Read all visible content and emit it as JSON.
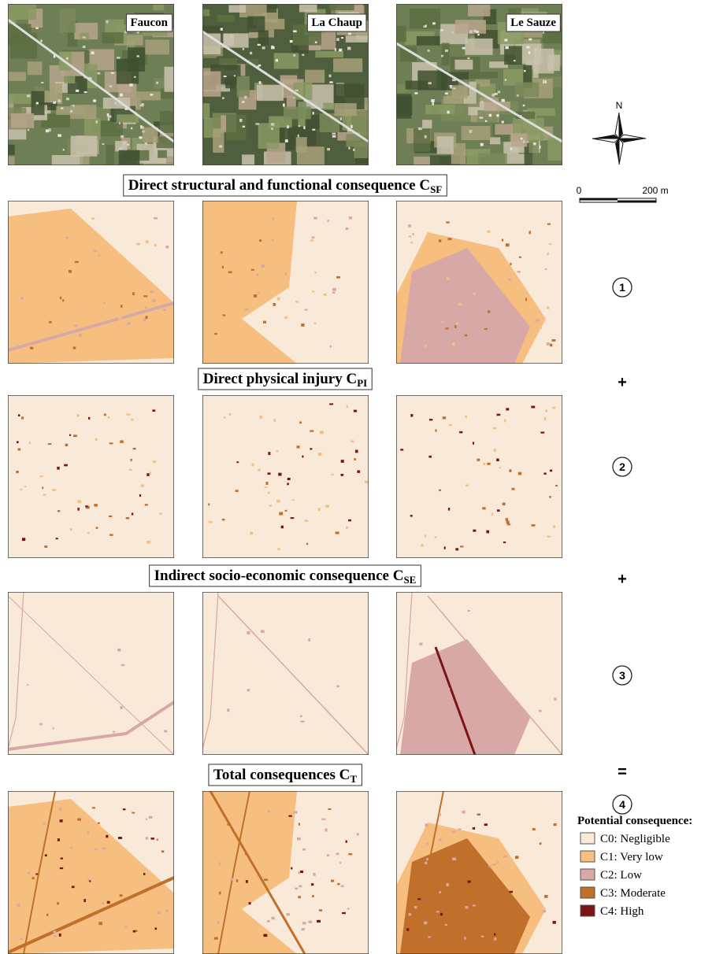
{
  "aerial_labels": [
    "Faucon",
    "La Chaup",
    "Le Sauze"
  ],
  "north_label": "N",
  "scale_bar": {
    "start": "0",
    "end": "200 m"
  },
  "sections": [
    {
      "title": "Direct structural and functional consequence C",
      "subscript": "SF"
    },
    {
      "title": "Direct physical injury C",
      "subscript": "PI"
    },
    {
      "title": "Indirect socio-economic consequence C",
      "subscript": "SE"
    },
    {
      "title": "Total consequences C",
      "subscript": "T"
    }
  ],
  "markers": [
    "1",
    "2",
    "3",
    "4"
  ],
  "operators": [
    "+",
    "+",
    "="
  ],
  "legend": {
    "title": "Potential consequence:",
    "items": [
      {
        "label": "C0: Negligible",
        "color": "#f8e9d8"
      },
      {
        "label": "C1: Very low",
        "color": "#f6bf80"
      },
      {
        "label": "C2: Low",
        "color": "#d8a8a6"
      },
      {
        "label": "C3: Moderate",
        "color": "#c0702b"
      },
      {
        "label": "C4: High",
        "color": "#7b1515"
      }
    ]
  }
}
